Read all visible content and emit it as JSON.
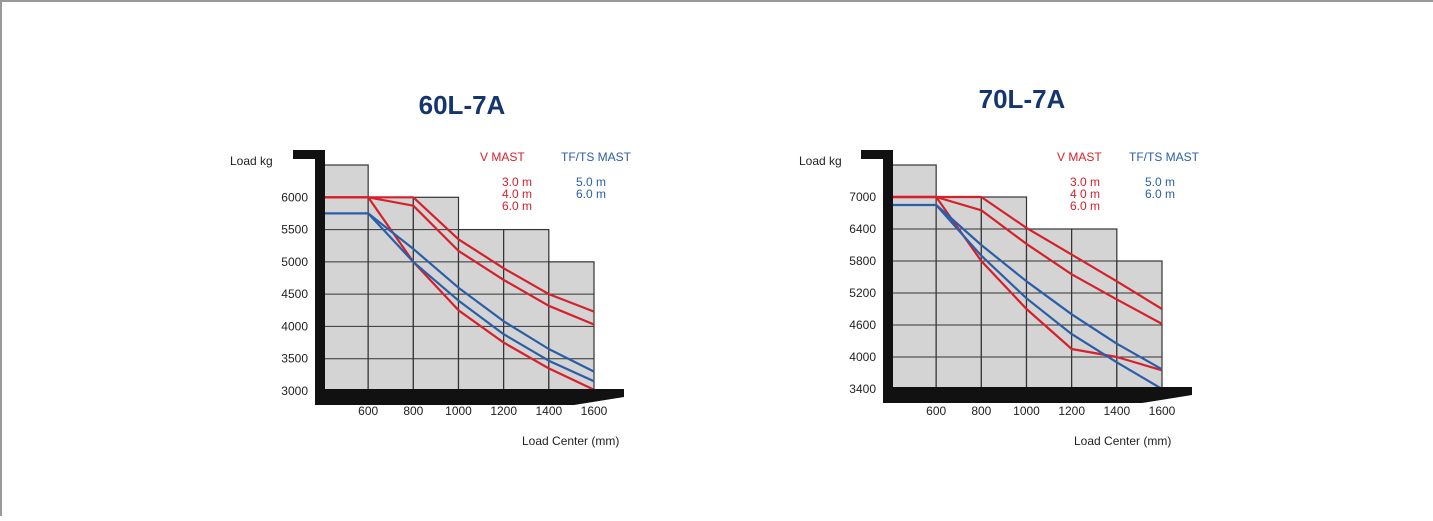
{
  "chart_data": [
    {
      "type": "line",
      "title": "60L-7A",
      "ylabel": "Load kg",
      "xlabel": "Load Center (mm)",
      "x_ticks": [
        600,
        800,
        1000,
        1200,
        1400,
        1600
      ],
      "y_ticks": [
        6000,
        5500,
        5000,
        4500,
        4000,
        3500,
        3000
      ],
      "ylim": [
        3000,
        6500
      ],
      "xlim": [
        400,
        1600
      ],
      "capacity_steps": [
        {
          "x0": 400,
          "x1": 600,
          "y": 6500
        },
        {
          "x0": 600,
          "x1": 800,
          "y": 6000
        },
        {
          "x0": 800,
          "x1": 1000,
          "y": 6000
        },
        {
          "x0": 1000,
          "x1": 1200,
          "y": 5500
        },
        {
          "x0": 1200,
          "x1": 1400,
          "y": 5500
        },
        {
          "x0": 1400,
          "x1": 1600,
          "y": 5000
        }
      ],
      "legend": {
        "v_mast_label": "V MAST",
        "tf_mast_label": "TF/TS MAST",
        "v_mast_heights": [
          "3.0 m",
          "4.0 m",
          "6.0 m"
        ],
        "tf_mast_heights": [
          "5.0 m",
          "6.0 m"
        ]
      },
      "series": [
        {
          "group": "V MAST",
          "color": "#d6202a",
          "x": [
            400,
            800,
            1000,
            1200,
            1400,
            1600
          ],
          "values": [
            6000,
            6000,
            5350,
            4900,
            4500,
            4230
          ]
        },
        {
          "group": "V MAST",
          "color": "#d6202a",
          "x": [
            400,
            600,
            800,
            1000,
            1200,
            1400,
            1600
          ],
          "values": [
            6000,
            6000,
            5870,
            5170,
            4720,
            4320,
            4030
          ]
        },
        {
          "group": "V MAST",
          "color": "#d6202a",
          "x": [
            400,
            600,
            800,
            1000,
            1200,
            1400,
            1600
          ],
          "values": [
            6000,
            6000,
            5000,
            4250,
            3750,
            3350,
            3020
          ]
        },
        {
          "group": "TF/TS MAST",
          "color": "#2a5ea8",
          "x": [
            400,
            600,
            800,
            1000,
            1200,
            1400,
            1600
          ],
          "values": [
            5750,
            5750,
            5200,
            4600,
            4080,
            3650,
            3300
          ]
        },
        {
          "group": "TF/TS MAST",
          "color": "#2a5ea8",
          "x": [
            600,
            800,
            1000,
            1200,
            1400,
            1600
          ],
          "values": [
            5750,
            5000,
            4400,
            3880,
            3470,
            3150
          ]
        }
      ]
    },
    {
      "type": "line",
      "title": "70L-7A",
      "ylabel": "Load kg",
      "xlabel": "Load Center (mm)",
      "x_ticks": [
        600,
        800,
        1000,
        1200,
        1400,
        1600
      ],
      "y_ticks": [
        7000,
        6400,
        5800,
        5200,
        4600,
        4000,
        3400
      ],
      "ylim": [
        3400,
        7600
      ],
      "xlim": [
        400,
        1600
      ],
      "capacity_steps": [
        {
          "x0": 400,
          "x1": 600,
          "y": 7600
        },
        {
          "x0": 600,
          "x1": 800,
          "y": 7000
        },
        {
          "x0": 800,
          "x1": 1000,
          "y": 7000
        },
        {
          "x0": 1000,
          "x1": 1200,
          "y": 6400
        },
        {
          "x0": 1200,
          "x1": 1400,
          "y": 6400
        },
        {
          "x0": 1400,
          "x1": 1600,
          "y": 5800
        }
      ],
      "legend": {
        "v_mast_label": "V MAST",
        "tf_mast_label": "TF/TS MAST",
        "v_mast_heights": [
          "3.0 m",
          "4 0 m",
          "6.0 m"
        ],
        "tf_mast_heights": [
          "5.0 m",
          "6.0 m"
        ]
      },
      "series": [
        {
          "group": "V MAST",
          "color": "#d6202a",
          "x": [
            400,
            800,
            1000,
            1200,
            1400,
            1600
          ],
          "values": [
            7000,
            7000,
            6420,
            5920,
            5420,
            4900
          ]
        },
        {
          "group": "V MAST",
          "color": "#d6202a",
          "x": [
            400,
            600,
            800,
            1000,
            1200,
            1400,
            1600
          ],
          "values": [
            7000,
            7000,
            6750,
            6120,
            5550,
            5080,
            4620
          ]
        },
        {
          "group": "V MAST",
          "color": "#d6202a",
          "x": [
            400,
            600,
            800,
            1000,
            1200,
            1400,
            1600
          ],
          "values": [
            7000,
            7000,
            5800,
            4900,
            4150,
            4000,
            3750
          ]
        },
        {
          "group": "TF/TS MAST",
          "color": "#2a5ea8",
          "x": [
            400,
            600,
            800,
            1000,
            1200,
            1400,
            1600
          ],
          "values": [
            6850,
            6850,
            6100,
            5420,
            4800,
            4250,
            3770
          ]
        },
        {
          "group": "TF/TS MAST",
          "color": "#2a5ea8",
          "x": [
            600,
            800,
            1000,
            1200,
            1400,
            1600
          ],
          "values": [
            6850,
            5900,
            5100,
            4430,
            3900,
            3400
          ]
        }
      ]
    }
  ]
}
